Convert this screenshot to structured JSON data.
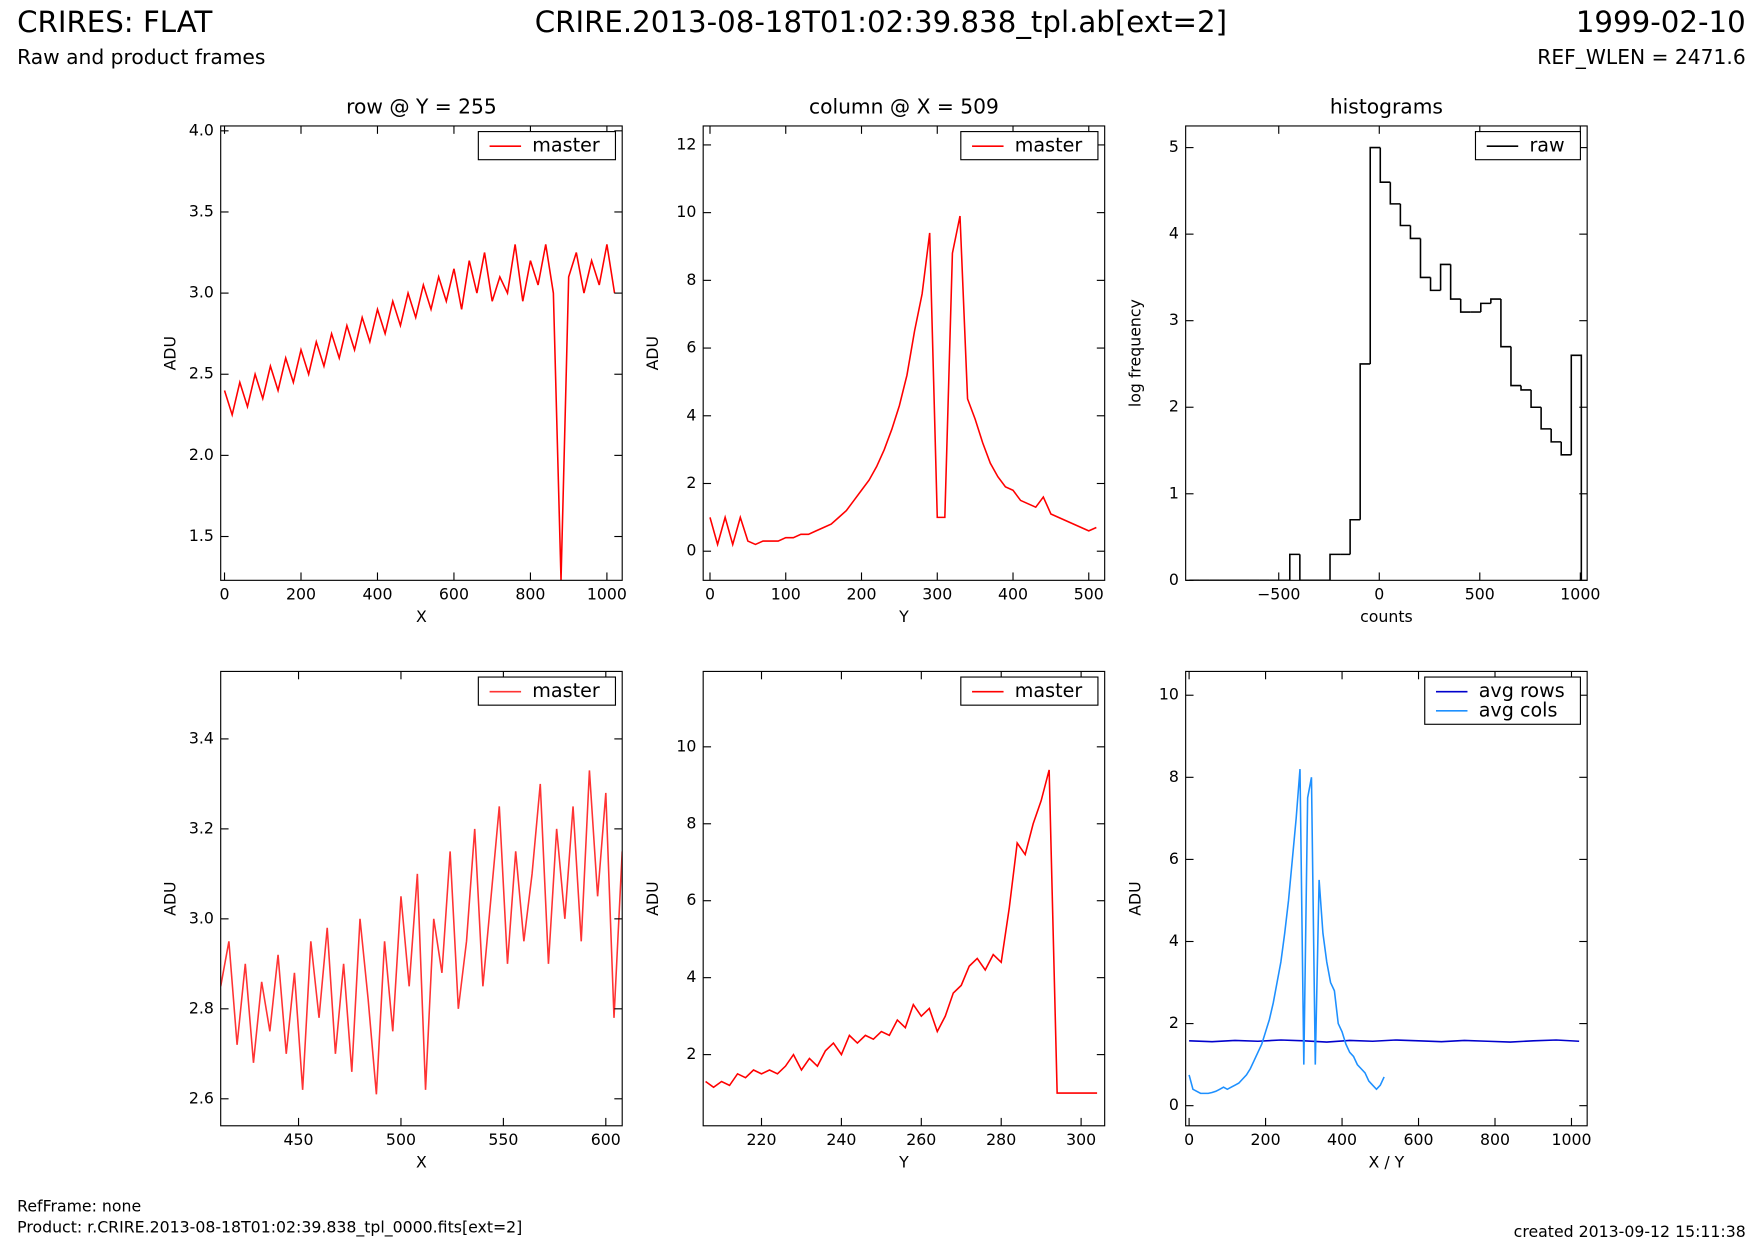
{
  "header": {
    "title": "CRIRES: FLAT",
    "subtitle": "Raw and product frames",
    "file": "CRIRE.2013-08-18T01:02:39.838_tpl.ab[ext=2]",
    "date": "1999-02-10",
    "ref_wlen": "REF_WLEN = 2471.6"
  },
  "footer": {
    "ref_frame": "RefFrame: none",
    "product": "Product: r.CRIRE.2013-08-18T01:02:39.838_tpl_0000.fits[ext=2]",
    "created": "created 2013-09-12 15:11:38"
  },
  "chart_data": [
    {
      "type": "line",
      "title": "row @ Y = 255",
      "x_label": "X",
      "y_label": "ADU",
      "legend": "upper right",
      "xlim": [
        -10,
        1040
      ],
      "xticks": [
        0,
        200,
        400,
        600,
        800,
        1000
      ],
      "ylim": [
        1.23,
        4.03
      ],
      "yticks": [
        1.5,
        {
          "value": 2,
          "label": "2.0"
        },
        2.5,
        {
          "value": 3,
          "label": "3.0"
        },
        3.5,
        {
          "value": 4,
          "label": "4.0"
        }
      ],
      "x": [
        0,
        20,
        40,
        60,
        80,
        100,
        120,
        140,
        160,
        180,
        200,
        220,
        240,
        260,
        280,
        300,
        320,
        340,
        360,
        380,
        400,
        420,
        440,
        460,
        480,
        500,
        520,
        540,
        560,
        580,
        600,
        620,
        640,
        660,
        680,
        700,
        720,
        740,
        760,
        780,
        800,
        820,
        840,
        860,
        880,
        900,
        920,
        940,
        960,
        980,
        1000,
        1020
      ],
      "series": [
        {
          "name": "master",
          "color": "#ff0000",
          "values": [
            2.4,
            2.25,
            2.45,
            2.3,
            2.5,
            2.35,
            2.55,
            2.4,
            2.6,
            2.45,
            2.65,
            2.5,
            2.7,
            2.55,
            2.75,
            2.6,
            2.8,
            2.65,
            2.85,
            2.7,
            2.9,
            2.75,
            2.95,
            2.8,
            3.0,
            2.85,
            3.05,
            2.9,
            3.1,
            2.95,
            3.15,
            2.9,
            3.2,
            3.0,
            3.25,
            2.95,
            3.1,
            3.0,
            3.3,
            2.95,
            3.2,
            3.05,
            3.3,
            3.0,
            1.23,
            3.1,
            3.25,
            3.0,
            3.2,
            3.05,
            3.3,
            3.0
          ]
        }
      ]
    },
    {
      "type": "line",
      "title": "column @ X = 509",
      "x_label": "Y",
      "y_label": "ADU",
      "legend": "upper right",
      "xlim": [
        -9,
        521
      ],
      "xticks": [
        0,
        100,
        200,
        300,
        400,
        500
      ],
      "ylim": [
        -0.86,
        12.56
      ],
      "yticks": [
        0,
        2,
        4,
        6,
        8,
        10,
        12
      ],
      "x": [
        0,
        10,
        20,
        30,
        40,
        50,
        60,
        70,
        80,
        90,
        100,
        110,
        120,
        130,
        140,
        150,
        160,
        170,
        180,
        190,
        200,
        210,
        220,
        230,
        240,
        250,
        260,
        270,
        280,
        290,
        300,
        310,
        320,
        330,
        340,
        350,
        360,
        370,
        380,
        390,
        400,
        410,
        420,
        430,
        440,
        450,
        460,
        470,
        480,
        490,
        500,
        510
      ],
      "series": [
        {
          "name": "master",
          "color": "#ff0000",
          "values": [
            1,
            0.2,
            1,
            0.2,
            1,
            0.3,
            0.2,
            0.3,
            0.3,
            0.3,
            0.4,
            0.4,
            0.5,
            0.5,
            0.6,
            0.7,
            0.8,
            1.0,
            1.2,
            1.5,
            1.8,
            2.1,
            2.5,
            3.0,
            3.6,
            4.3,
            5.2,
            6.5,
            7.6,
            9.4,
            1.0,
            1.0,
            8.8,
            9.9,
            4.5,
            3.9,
            3.2,
            2.6,
            2.2,
            1.9,
            1.8,
            1.5,
            1.4,
            1.3,
            1.6,
            1.1,
            1.0,
            0.9,
            0.8,
            0.7,
            0.6,
            0.7
          ]
        }
      ]
    },
    {
      "type": "histogram",
      "title": "histograms",
      "x_label": "counts",
      "y_label": "log frequency",
      "legend": "upper right",
      "xlim": [
        -963,
        1034
      ],
      "xticks": [
        {
          "value": -500,
          "label": "−500"
        },
        0,
        500,
        1000
      ],
      "ylim": [
        0,
        5.25
      ],
      "yticks": [
        0,
        1,
        2,
        3,
        4,
        5
      ],
      "bins": [
        -945,
        -895,
        -845,
        -795,
        -745,
        -695,
        -645,
        -595,
        -545,
        -495,
        -445,
        -395,
        -345,
        -295,
        -245,
        -195,
        -145,
        -95,
        -45,
        5,
        55,
        105,
        155,
        205,
        255,
        305,
        355,
        405,
        455,
        505,
        555,
        605,
        655,
        705,
        755,
        805,
        855,
        905,
        955,
        1005
      ],
      "series": [
        {
          "name": "raw",
          "color": "#000000",
          "values": [
            0,
            0,
            0,
            0,
            0,
            0,
            0,
            0,
            0,
            0,
            0.3,
            0,
            0,
            0,
            0.3,
            0.3,
            0.7,
            2.5,
            5.0,
            4.6,
            4.35,
            4.1,
            3.95,
            3.5,
            3.35,
            3.65,
            3.25,
            3.1,
            3.1,
            3.2,
            3.25,
            2.7,
            2.25,
            2.2,
            2.0,
            1.75,
            1.6,
            1.45,
            2.6
          ]
        }
      ]
    },
    {
      "type": "line",
      "x_label": "X",
      "y_label": "ADU",
      "legend": "upper right",
      "xlim": [
        412,
        608
      ],
      "xticks": [
        450,
        500,
        550,
        600
      ],
      "ylim": [
        2.54,
        3.55
      ],
      "yticks": [
        2.6,
        2.8,
        {
          "value": 3,
          "label": "3.0"
        },
        3.2,
        3.4
      ],
      "x": [
        412,
        416,
        420,
        424,
        428,
        432,
        436,
        440,
        444,
        448,
        452,
        456,
        460,
        464,
        468,
        472,
        476,
        480,
        484,
        488,
        492,
        496,
        500,
        504,
        508,
        512,
        516,
        520,
        524,
        528,
        532,
        536,
        540,
        544,
        548,
        552,
        556,
        560,
        564,
        568,
        572,
        576,
        580,
        584,
        588,
        592,
        596,
        600,
        604,
        608
      ],
      "series": [
        {
          "name": "master",
          "color": "#ff3333",
          "values": [
            2.85,
            2.95,
            2.72,
            2.9,
            2.68,
            2.86,
            2.75,
            2.92,
            2.7,
            2.88,
            2.62,
            2.95,
            2.78,
            2.98,
            2.7,
            2.9,
            2.66,
            3.0,
            2.82,
            2.61,
            2.95,
            2.75,
            3.05,
            2.85,
            3.1,
            2.62,
            3.0,
            2.88,
            3.15,
            2.8,
            2.95,
            3.2,
            2.85,
            3.05,
            3.25,
            2.9,
            3.15,
            2.95,
            3.1,
            3.3,
            2.9,
            3.2,
            3.0,
            3.25,
            2.95,
            3.33,
            3.05,
            3.28,
            2.78,
            3.15
          ]
        }
      ]
    },
    {
      "type": "line",
      "x_label": "Y",
      "y_label": "ADU",
      "legend": "upper right",
      "xlim": [
        205.4,
        305.9
      ],
      "xticks": [
        220,
        240,
        260,
        280,
        300
      ],
      "ylim": [
        0.15,
        11.96
      ],
      "yticks": [
        2,
        4,
        6,
        8,
        10
      ],
      "x": [
        206,
        208,
        210,
        212,
        214,
        216,
        218,
        220,
        222,
        224,
        226,
        228,
        230,
        232,
        234,
        236,
        238,
        240,
        242,
        244,
        246,
        248,
        250,
        252,
        254,
        256,
        258,
        260,
        262,
        264,
        266,
        268,
        270,
        272,
        274,
        276,
        278,
        280,
        282,
        284,
        286,
        288,
        290,
        292,
        294,
        296,
        298,
        300,
        302,
        304
      ],
      "series": [
        {
          "name": "master",
          "color": "#ff0000",
          "values": [
            1.3,
            1.15,
            1.3,
            1.2,
            1.5,
            1.4,
            1.6,
            1.5,
            1.6,
            1.5,
            1.7,
            2.0,
            1.6,
            1.9,
            1.7,
            2.1,
            2.3,
            2.0,
            2.5,
            2.3,
            2.5,
            2.4,
            2.6,
            2.5,
            2.9,
            2.7,
            3.3,
            3.0,
            3.2,
            2.6,
            3.0,
            3.6,
            3.8,
            4.3,
            4.5,
            4.2,
            4.6,
            4.4,
            5.8,
            7.5,
            7.2,
            8.0,
            8.6,
            9.4,
            1.0,
            1.0,
            1.0,
            1.0,
            1.0,
            1.0
          ]
        }
      ]
    },
    {
      "type": "line",
      "x_label": "X / Y",
      "y_label": "ADU",
      "legend": "upper right",
      "xlim": [
        -9,
        1041
      ],
      "xticks": [
        0,
        200,
        400,
        600,
        800,
        1000
      ],
      "ylim": [
        -0.49,
        10.58
      ],
      "yticks": [
        0,
        2,
        4,
        6,
        8,
        10
      ],
      "series": [
        {
          "name": "avg rows",
          "color": "#0000cc",
          "x": [
            0,
            60,
            120,
            180,
            240,
            300,
            360,
            420,
            480,
            540,
            600,
            660,
            720,
            780,
            840,
            900,
            960,
            1020
          ],
          "values": [
            1.58,
            1.56,
            1.59,
            1.57,
            1.6,
            1.58,
            1.55,
            1.59,
            1.57,
            1.6,
            1.58,
            1.56,
            1.59,
            1.57,
            1.55,
            1.58,
            1.6,
            1.57
          ]
        },
        {
          "name": "avg cols",
          "color": "#1e90ff",
          "x": [
            0,
            10,
            20,
            30,
            40,
            50,
            60,
            70,
            80,
            90,
            100,
            110,
            120,
            130,
            140,
            150,
            160,
            170,
            180,
            190,
            200,
            210,
            220,
            230,
            240,
            250,
            260,
            270,
            280,
            290,
            300,
            310,
            320,
            330,
            340,
            350,
            360,
            370,
            380,
            390,
            400,
            410,
            420,
            430,
            440,
            450,
            460,
            470,
            480,
            490,
            500,
            510
          ],
          "values": [
            0.75,
            0.4,
            0.35,
            0.3,
            0.3,
            0.3,
            0.32,
            0.35,
            0.4,
            0.45,
            0.4,
            0.45,
            0.5,
            0.55,
            0.65,
            0.75,
            0.9,
            1.1,
            1.3,
            1.5,
            1.8,
            2.1,
            2.5,
            3.0,
            3.5,
            4.2,
            5.0,
            6.0,
            7.0,
            8.2,
            1.0,
            7.5,
            8.0,
            1.0,
            5.5,
            4.2,
            3.5,
            3.0,
            2.8,
            2.0,
            1.8,
            1.5,
            1.3,
            1.2,
            1.0,
            0.9,
            0.8,
            0.6,
            0.5,
            0.4,
            0.5,
            0.7
          ]
        }
      ]
    }
  ]
}
